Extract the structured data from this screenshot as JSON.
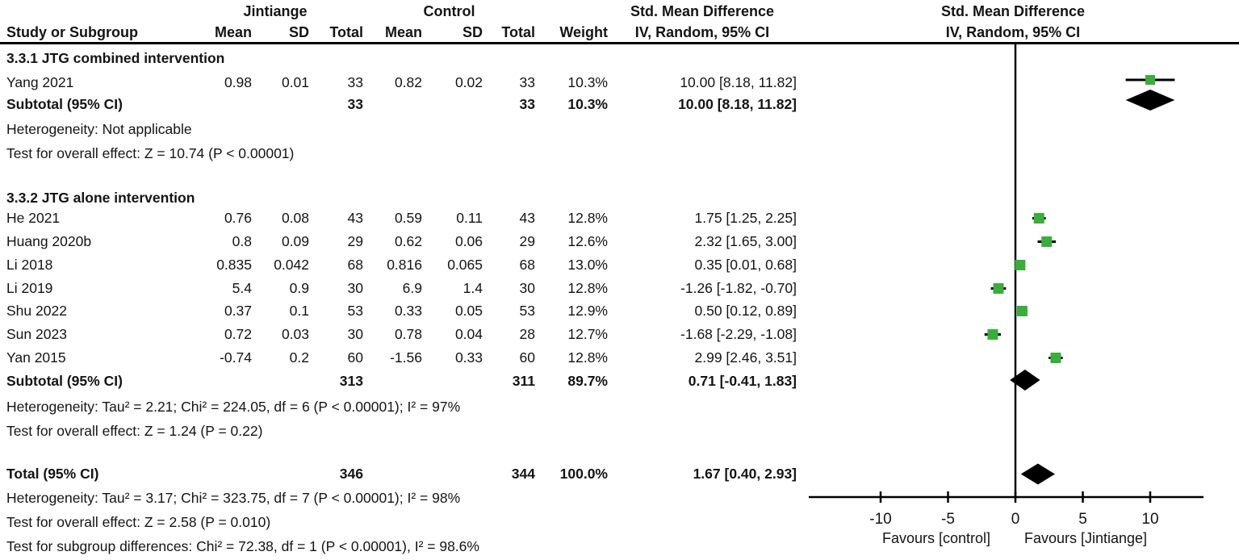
{
  "header": {
    "group1": "Jintiange",
    "group2": "Control",
    "effect": "Std. Mean Difference",
    "effect_sub": "IV, Random, 95% CI",
    "plot": "Std. Mean Difference",
    "plot_sub": "IV, Random, 95% CI",
    "study": "Study or Subgroup",
    "mean": "Mean",
    "sd": "SD",
    "total": "Total",
    "weight": "Weight"
  },
  "sections": [
    {
      "title": "3.3.1 JTG combined intervention",
      "studies": [
        [
          "Yang 2021",
          "0.98",
          "0.01",
          "33",
          "0.82",
          "0.02",
          "33",
          "10.3%",
          "10.00 [8.18, 11.82]"
        ]
      ],
      "subtotal": [
        "Subtotal (95% CI)",
        "",
        "",
        "33",
        "",
        "",
        "33",
        "10.3%",
        "10.00 [8.18, 11.82]"
      ],
      "notes": [
        "Heterogeneity: Not applicable",
        "Test for overall effect: Z = 10.74 (P < 0.00001)"
      ]
    },
    {
      "title": "3.3.2 JTG alone intervention",
      "studies": [
        [
          "He 2021",
          "0.76",
          "0.08",
          "43",
          "0.59",
          "0.11",
          "43",
          "12.8%",
          "1.75 [1.25, 2.25]"
        ],
        [
          "Huang 2020b",
          "0.8",
          "0.09",
          "29",
          "0.62",
          "0.06",
          "29",
          "12.6%",
          "2.32 [1.65, 3.00]"
        ],
        [
          "Li 2018",
          "0.835",
          "0.042",
          "68",
          "0.816",
          "0.065",
          "68",
          "13.0%",
          "0.35 [0.01, 0.68]"
        ],
        [
          "Li 2019",
          "5.4",
          "0.9",
          "30",
          "6.9",
          "1.4",
          "30",
          "12.8%",
          "-1.26 [-1.82, -0.70]"
        ],
        [
          "Shu 2022",
          "0.37",
          "0.1",
          "53",
          "0.33",
          "0.05",
          "53",
          "12.9%",
          "0.50 [0.12, 0.89]"
        ],
        [
          "Sun 2023",
          "0.72",
          "0.03",
          "30",
          "0.78",
          "0.04",
          "28",
          "12.7%",
          "-1.68 [-2.29, -1.08]"
        ],
        [
          "Yan 2015",
          "-0.74",
          "0.2",
          "60",
          "-1.56",
          "0.33",
          "60",
          "12.8%",
          "2.99 [2.46, 3.51]"
        ]
      ],
      "subtotal": [
        "Subtotal (95% CI)",
        "",
        "",
        "313",
        "",
        "",
        "311",
        "89.7%",
        "0.71 [-0.41, 1.83]"
      ],
      "notes": [
        "Heterogeneity: Tau² = 2.21; Chi² = 224.05, df = 6 (P < 0.00001); I² = 97%",
        "Test for overall effect: Z = 1.24 (P = 0.22)"
      ]
    }
  ],
  "total_row": [
    "Total (95% CI)",
    "",
    "",
    "346",
    "",
    "",
    "344",
    "100.0%",
    "1.67 [0.40, 2.93]"
  ],
  "total_notes": [
    "Heterogeneity: Tau² = 3.17; Chi² = 323.75, df = 7 (P < 0.00001); I² = 98%",
    "Test for overall effect: Z = 2.58 (P = 0.010)",
    "Test for subgroup differences: Chi² = 72.38, df = 1 (P < 0.00001), I² = 98.6%"
  ],
  "chart_data": {
    "type": "forest",
    "effect_measure": "Std. Mean Difference, IV, Random, 95% CI",
    "x_ticks": [
      -10,
      -5,
      0,
      5,
      10
    ],
    "xlim": [
      -15.5,
      14
    ],
    "zero_line": 0,
    "axis_label_left": "Favours [control]",
    "axis_label_right": "Favours [Jintiange]",
    "marker_color": "#3AAD3A",
    "line_color": "#000000",
    "points": [
      {
        "label": "Yang 2021",
        "est": 10.0,
        "lo": 8.18,
        "hi": 11.82,
        "weight_pct": 10.3,
        "marker": "square"
      },
      {
        "label": "Subtotal (95% CI) 3.3.1",
        "est": 10.0,
        "lo": 8.18,
        "hi": 11.82,
        "weight_pct": 10.3,
        "marker": "diamond"
      },
      {
        "label": "He 2021",
        "est": 1.75,
        "lo": 1.25,
        "hi": 2.25,
        "weight_pct": 12.8,
        "marker": "square"
      },
      {
        "label": "Huang 2020b",
        "est": 2.32,
        "lo": 1.65,
        "hi": 3.0,
        "weight_pct": 12.6,
        "marker": "square"
      },
      {
        "label": "Li 2018",
        "est": 0.35,
        "lo": 0.01,
        "hi": 0.68,
        "weight_pct": 13.0,
        "marker": "square"
      },
      {
        "label": "Li 2019",
        "est": -1.26,
        "lo": -1.82,
        "hi": -0.7,
        "weight_pct": 12.8,
        "marker": "square"
      },
      {
        "label": "Shu 2022",
        "est": 0.5,
        "lo": 0.12,
        "hi": 0.89,
        "weight_pct": 12.9,
        "marker": "square"
      },
      {
        "label": "Sun 2023",
        "est": -1.68,
        "lo": -2.29,
        "hi": -1.08,
        "weight_pct": 12.7,
        "marker": "square"
      },
      {
        "label": "Yan 2015",
        "est": 2.99,
        "lo": 2.46,
        "hi": 3.51,
        "weight_pct": 12.8,
        "marker": "square"
      },
      {
        "label": "Subtotal (95% CI) 3.3.2",
        "est": 0.71,
        "lo": -0.41,
        "hi": 1.83,
        "weight_pct": 89.7,
        "marker": "diamond"
      },
      {
        "label": "Total (95% CI)",
        "est": 1.67,
        "lo": 0.4,
        "hi": 2.93,
        "weight_pct": 100.0,
        "marker": "diamond"
      }
    ]
  }
}
